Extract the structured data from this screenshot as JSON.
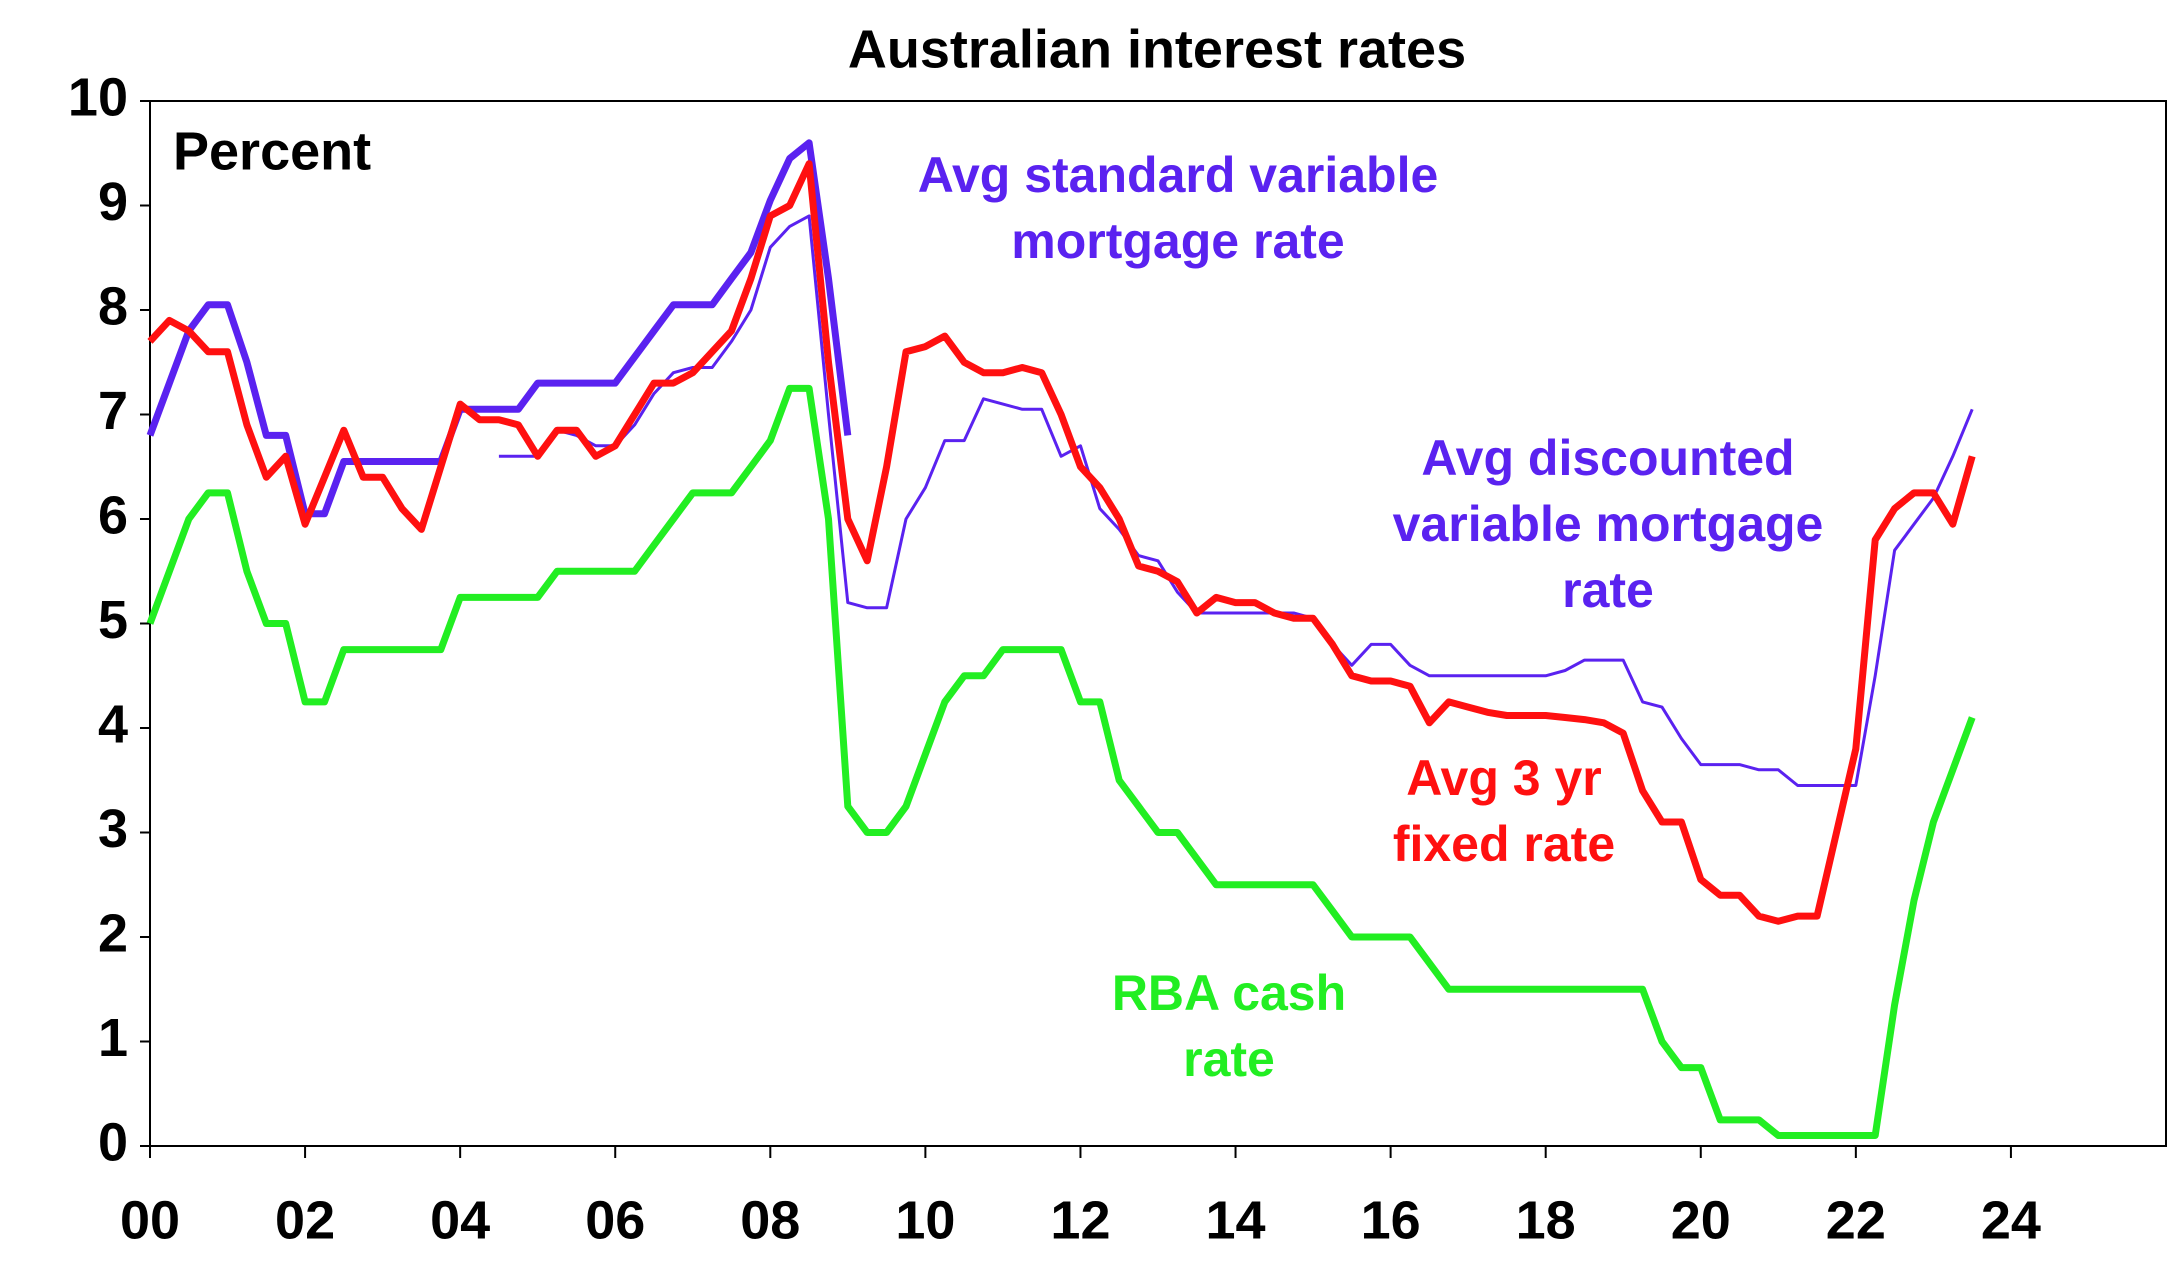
{
  "chart_data": {
    "type": "line",
    "title": "Australian interest rates",
    "y_label": "Percent",
    "xlim": [
      0,
      26
    ],
    "ylim": [
      0,
      10
    ],
    "xticks": [
      {
        "value": 0,
        "label": "00"
      },
      {
        "value": 2,
        "label": "02"
      },
      {
        "value": 4,
        "label": "04"
      },
      {
        "value": 6,
        "label": "06"
      },
      {
        "value": 8,
        "label": "08"
      },
      {
        "value": 10,
        "label": "10"
      },
      {
        "value": 12,
        "label": "12"
      },
      {
        "value": 14,
        "label": "14"
      },
      {
        "value": 16,
        "label": "16"
      },
      {
        "value": 18,
        "label": "18"
      },
      {
        "value": 20,
        "label": "20"
      },
      {
        "value": 22,
        "label": "22"
      },
      {
        "value": 24,
        "label": "24"
      }
    ],
    "yticks": [
      0,
      1,
      2,
      3,
      4,
      5,
      6,
      7,
      8,
      9,
      10
    ],
    "x": [
      0,
      0.25,
      0.5,
      0.75,
      1,
      1.25,
      1.5,
      1.75,
      2,
      2.25,
      2.5,
      2.75,
      3,
      3.25,
      3.5,
      3.75,
      4,
      4.25,
      4.5,
      4.75,
      5,
      5.25,
      5.5,
      5.75,
      6,
      6.25,
      6.5,
      6.75,
      7,
      7.25,
      7.5,
      7.75,
      8,
      8.25,
      8.5,
      8.75,
      9,
      9.25,
      9.5,
      9.75,
      10,
      10.25,
      10.5,
      10.75,
      11,
      11.25,
      11.5,
      11.75,
      12,
      12.25,
      12.5,
      12.75,
      13,
      13.25,
      13.5,
      13.75,
      14,
      14.25,
      14.5,
      14.75,
      15,
      15.25,
      15.5,
      15.75,
      16,
      16.25,
      16.5,
      16.75,
      17,
      17.25,
      17.5,
      17.75,
      18,
      18.25,
      18.5,
      18.75,
      19,
      19.25,
      19.5,
      19.75,
      20,
      20.25,
      20.5,
      20.75,
      21,
      21.25,
      21.5,
      21.75,
      22,
      22.25,
      22.5,
      22.75,
      23,
      23.25,
      23.5
    ],
    "series": [
      {
        "name": "Avg standard variable mortgage rate",
        "color": "#5a22f0",
        "width": 7,
        "values": [
          6.8,
          7.3,
          7.8,
          8.05,
          8.05,
          7.5,
          6.8,
          6.8,
          6.05,
          6.05,
          6.55,
          6.55,
          6.55,
          6.55,
          6.55,
          6.55,
          7.05,
          7.05,
          7.05,
          7.05,
          7.3,
          7.3,
          7.3,
          7.3,
          7.3,
          7.55,
          7.8,
          8.05,
          8.05,
          8.05,
          8.3,
          8.55,
          9.05,
          9.45,
          9.6,
          8.3,
          6.8,
          null,
          null,
          null,
          null,
          null,
          null,
          null,
          null,
          null,
          null,
          null,
          null,
          null,
          null,
          null,
          null,
          null,
          null,
          null,
          null,
          null,
          null,
          null,
          null,
          null,
          null,
          null,
          null,
          null,
          null,
          null,
          null,
          null,
          null,
          null,
          null,
          null,
          null,
          null,
          null,
          null,
          null,
          null,
          null,
          null,
          null,
          null,
          null,
          null,
          null,
          null,
          null,
          null,
          null,
          null,
          null,
          null,
          null
        ]
      },
      {
        "name": "Avg discounted variable mortgage rate",
        "color": "#5a22f0",
        "width": 3,
        "values": [
          null,
          null,
          null,
          null,
          null,
          null,
          null,
          null,
          null,
          null,
          null,
          null,
          null,
          null,
          null,
          null,
          null,
          null,
          6.6,
          6.6,
          6.6,
          6.85,
          6.8,
          6.7,
          6.7,
          6.9,
          7.2,
          7.4,
          7.45,
          7.45,
          7.7,
          8.0,
          8.6,
          8.8,
          8.9,
          7.0,
          5.2,
          5.15,
          5.15,
          6.0,
          6.3,
          6.75,
          6.75,
          7.15,
          7.1,
          7.05,
          7.05,
          6.6,
          6.7,
          6.1,
          5.9,
          5.65,
          5.6,
          5.3,
          5.1,
          5.1,
          5.1,
          5.1,
          5.1,
          5.1,
          5.05,
          4.8,
          4.6,
          4.8,
          4.8,
          4.6,
          4.5,
          4.5,
          4.5,
          4.5,
          4.5,
          4.5,
          4.5,
          4.55,
          4.65,
          4.65,
          4.65,
          4.25,
          4.2,
          3.9,
          3.65,
          3.65,
          3.65,
          3.6,
          3.6,
          3.45,
          3.45,
          3.45,
          3.45,
          4.5,
          5.7,
          5.95,
          6.2,
          6.6,
          7.05
        ]
      },
      {
        "name": "Avg 3 yr fixed rate",
        "color": "#ff1010",
        "width": 7,
        "values": [
          7.7,
          7.9,
          7.8,
          7.6,
          7.6,
          6.9,
          6.4,
          6.6,
          5.95,
          6.4,
          6.85,
          6.4,
          6.4,
          6.1,
          5.9,
          6.5,
          7.1,
          6.95,
          6.95,
          6.9,
          6.6,
          6.85,
          6.85,
          6.6,
          6.7,
          7.0,
          7.3,
          7.3,
          7.4,
          7.6,
          7.8,
          8.3,
          8.9,
          9.0,
          9.4,
          7.5,
          6.0,
          5.6,
          6.5,
          7.6,
          7.65,
          7.75,
          7.5,
          7.4,
          7.4,
          7.45,
          7.4,
          7.0,
          6.5,
          6.3,
          6.0,
          5.55,
          5.5,
          5.4,
          5.1,
          5.25,
          5.2,
          5.2,
          5.1,
          5.05,
          5.05,
          4.8,
          4.5,
          4.45,
          4.45,
          4.4,
          4.05,
          4.25,
          4.2,
          4.15,
          4.12,
          4.12,
          4.12,
          4.1,
          4.08,
          4.05,
          3.95,
          3.4,
          3.1,
          3.1,
          2.55,
          2.4,
          2.4,
          2.2,
          2.15,
          2.2,
          2.2,
          3.0,
          3.8,
          5.8,
          6.1,
          6.25,
          6.25,
          5.95,
          6.6
        ]
      },
      {
        "name": "RBA cash rate",
        "color": "#22ee22",
        "width": 7,
        "values": [
          5.0,
          5.5,
          6.0,
          6.25,
          6.25,
          5.5,
          5.0,
          5.0,
          4.25,
          4.25,
          4.75,
          4.75,
          4.75,
          4.75,
          4.75,
          4.75,
          5.25,
          5.25,
          5.25,
          5.25,
          5.25,
          5.5,
          5.5,
          5.5,
          5.5,
          5.5,
          5.75,
          6.0,
          6.25,
          6.25,
          6.25,
          6.5,
          6.75,
          7.25,
          7.25,
          6.0,
          3.25,
          3.0,
          3.0,
          3.25,
          3.75,
          4.25,
          4.5,
          4.5,
          4.75,
          4.75,
          4.75,
          4.75,
          4.25,
          4.25,
          3.5,
          3.25,
          3.0,
          3.0,
          2.75,
          2.5,
          2.5,
          2.5,
          2.5,
          2.5,
          2.5,
          2.25,
          2.0,
          2.0,
          2.0,
          2.0,
          1.75,
          1.5,
          1.5,
          1.5,
          1.5,
          1.5,
          1.5,
          1.5,
          1.5,
          1.5,
          1.5,
          1.5,
          1.0,
          0.75,
          0.75,
          0.25,
          0.25,
          0.25,
          0.1,
          0.1,
          0.1,
          0.1,
          0.1,
          0.1,
          1.35,
          2.35,
          3.1,
          3.6,
          4.1
        ]
      }
    ]
  }
}
